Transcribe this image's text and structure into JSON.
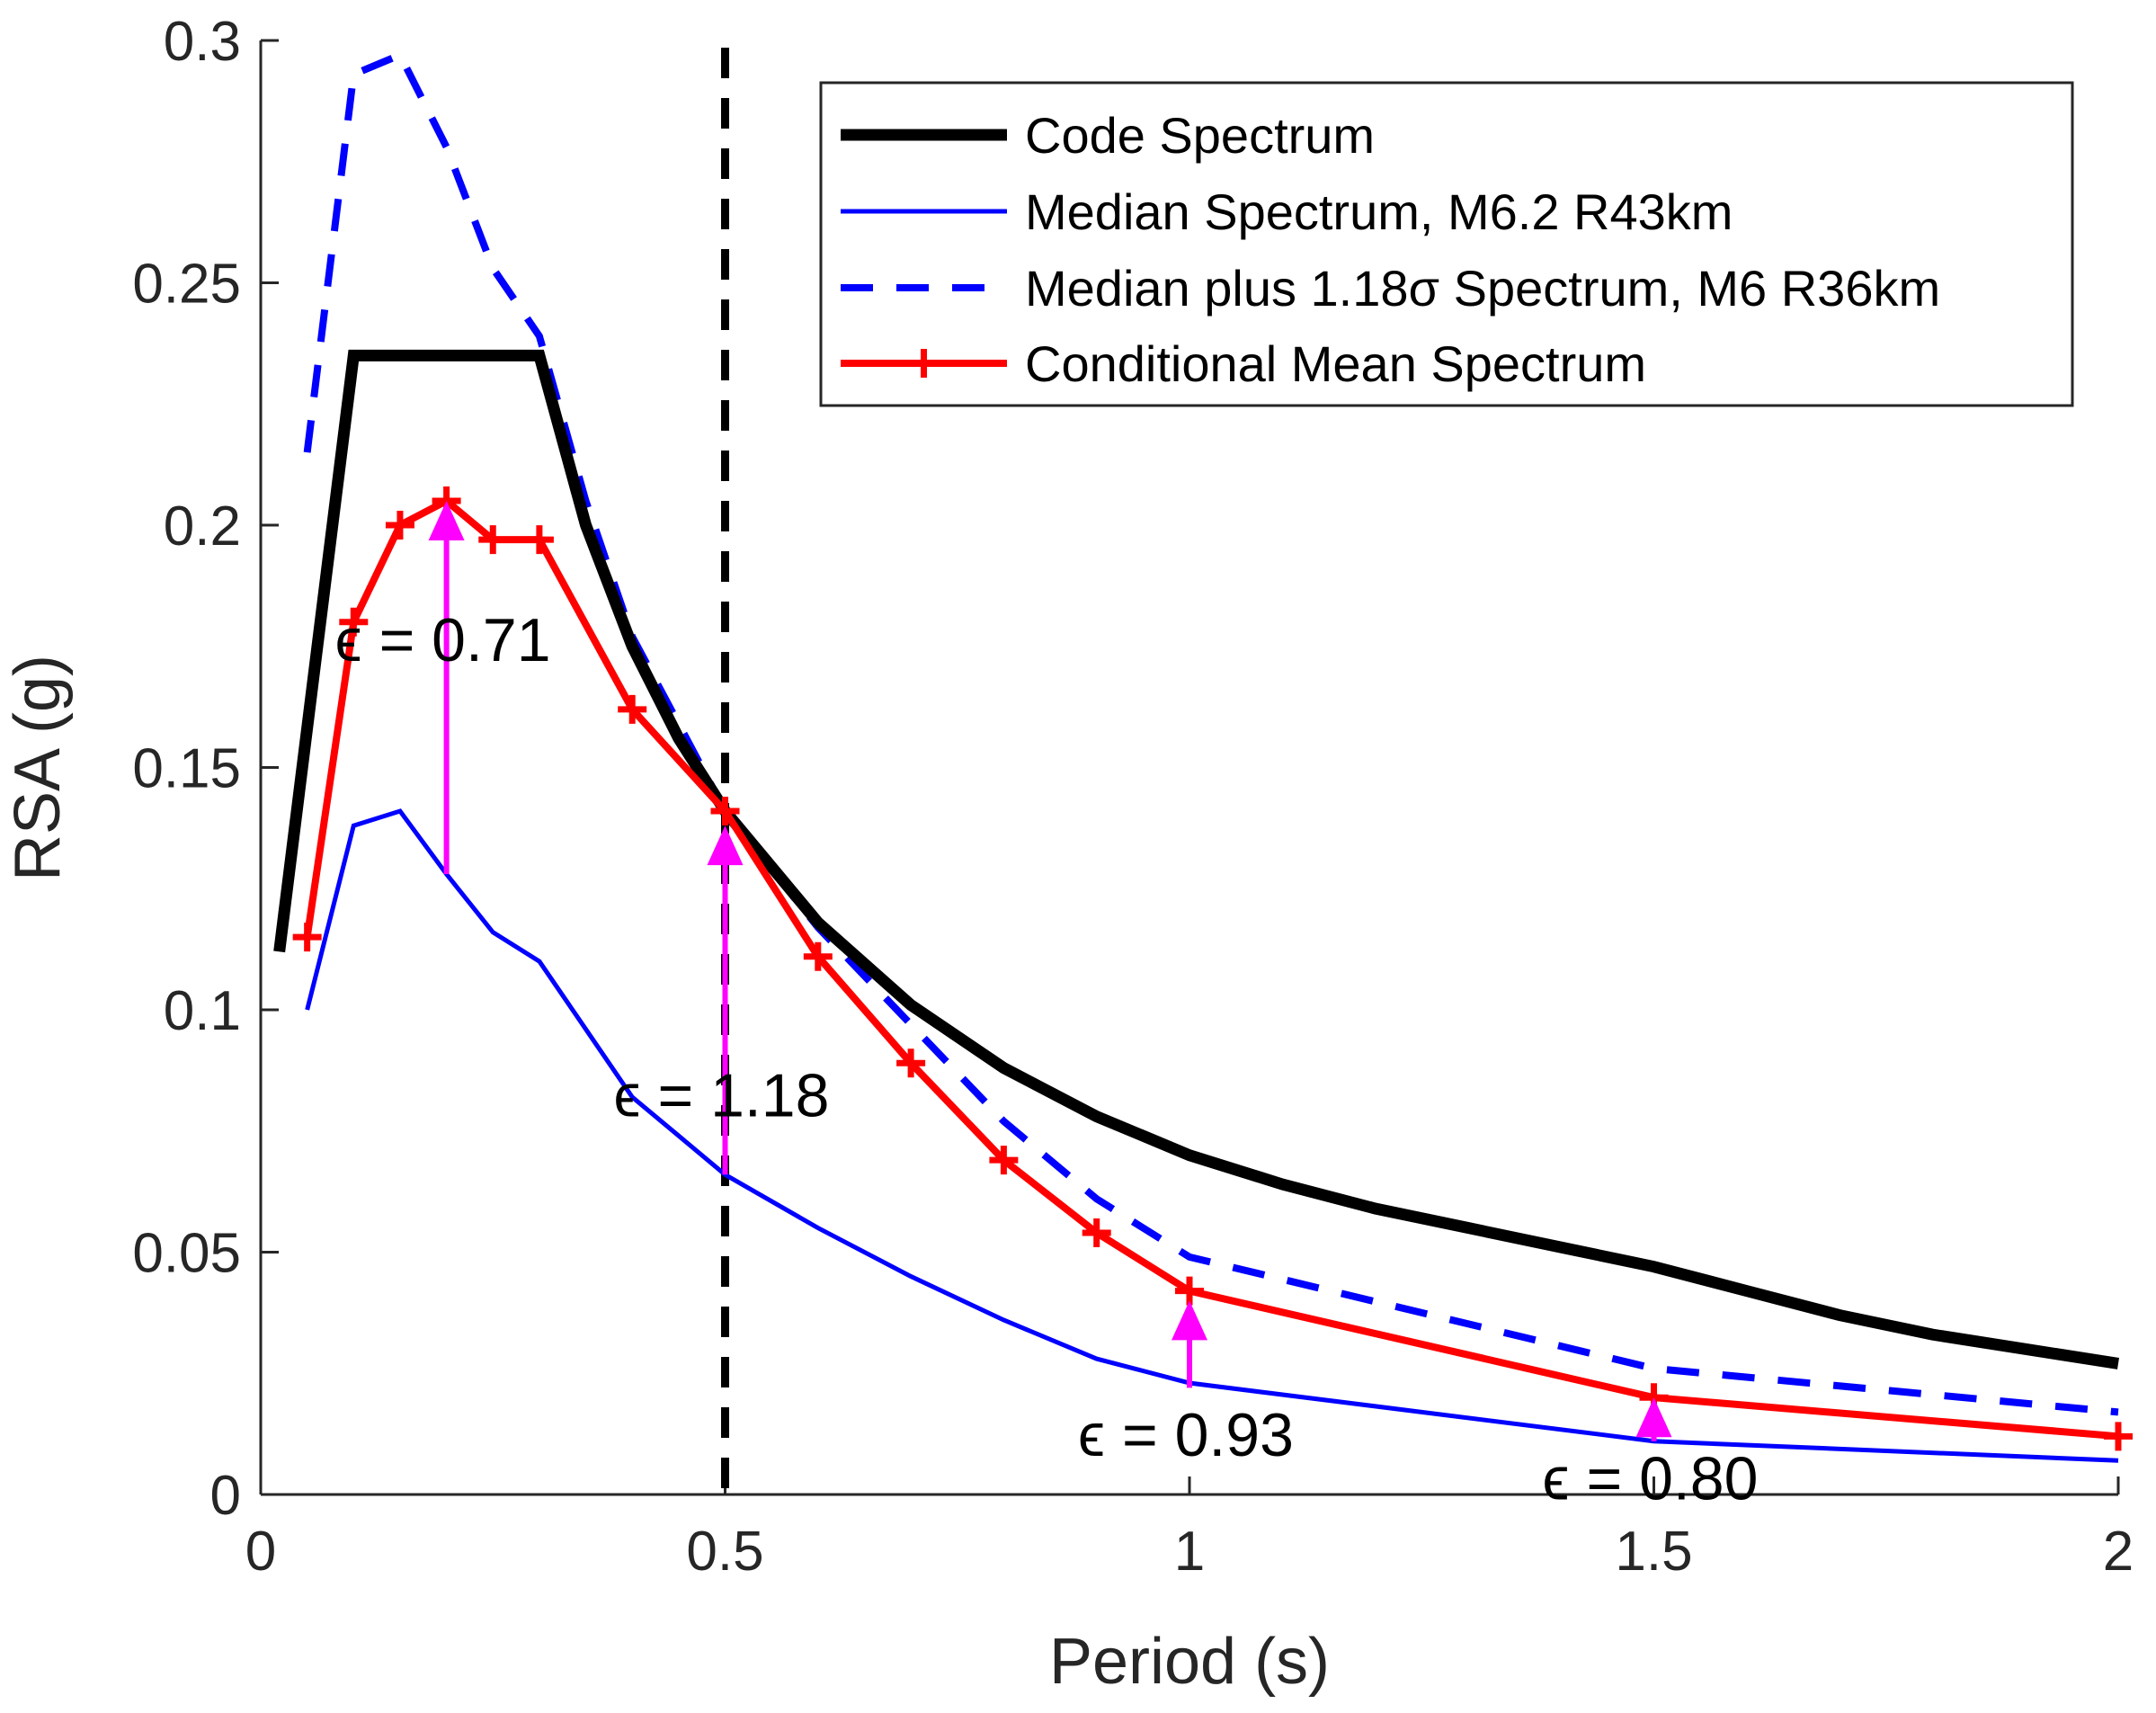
{
  "chart_data": {
    "type": "line",
    "xlabel": "Period (s)",
    "ylabel": "RSA (g)",
    "xlim": [
      0,
      2
    ],
    "ylim": [
      0,
      0.3
    ],
    "xticks": [
      0,
      0.5,
      1,
      1.5,
      2
    ],
    "xtick_labels": [
      "0",
      "0.5",
      "1",
      "1.5",
      "2"
    ],
    "yticks": [
      0,
      0.05,
      0.1,
      0.15,
      0.2,
      0.25,
      0.3
    ],
    "ytick_labels": [
      "0",
      "0.05",
      "0.1",
      "0.15",
      "0.2",
      "0.25",
      "0.3"
    ],
    "grid": false,
    "legend_position": "top-right",
    "conditioning_period": 0.5,
    "series": [
      {
        "name": "Code Spectrum",
        "color": "#000000",
        "style": "solid-thick",
        "x": [
          0.02,
          0.1,
          0.3,
          0.35,
          0.4,
          0.45,
          0.5,
          0.6,
          0.7,
          0.8,
          0.9,
          1.0,
          1.1,
          1.2,
          1.3,
          1.4,
          1.5,
          1.6,
          1.7,
          1.8,
          1.9,
          2.0
        ],
        "y": [
          0.112,
          0.235,
          0.235,
          0.2,
          0.175,
          0.156,
          0.141,
          0.118,
          0.101,
          0.088,
          0.078,
          0.07,
          0.064,
          0.059,
          0.055,
          0.051,
          0.047,
          0.042,
          0.037,
          0.033,
          0.03,
          0.027
        ]
      },
      {
        "name": "Median Spectrum, M6.2 R43km",
        "color": "#0000ff",
        "style": "solid",
        "x": [
          0.05,
          0.1,
          0.15,
          0.2,
          0.25,
          0.3,
          0.35,
          0.4,
          0.5,
          0.6,
          0.7,
          0.8,
          0.9,
          1.0,
          1.5,
          2.0
        ],
        "y": [
          0.1,
          0.138,
          0.141,
          0.128,
          0.116,
          0.11,
          0.096,
          0.082,
          0.066,
          0.055,
          0.045,
          0.036,
          0.028,
          0.023,
          0.011,
          0.007
        ]
      },
      {
        "name": "Median plus 1.18σ Spectrum, M6 R36km",
        "color": "#0000ff",
        "style": "dashed",
        "x": [
          0.05,
          0.1,
          0.15,
          0.2,
          0.25,
          0.3,
          0.35,
          0.4,
          0.5,
          0.6,
          0.7,
          0.8,
          0.9,
          1.0,
          1.5,
          2.0
        ],
        "y": [
          0.215,
          0.293,
          0.297,
          0.278,
          0.253,
          0.239,
          0.205,
          0.177,
          0.141,
          0.117,
          0.097,
          0.077,
          0.061,
          0.049,
          0.026,
          0.017
        ]
      },
      {
        "name": "Conditional Mean Spectrum",
        "color": "#ff0000",
        "style": "solid-with-plus-markers",
        "x": [
          0.05,
          0.1,
          0.15,
          0.2,
          0.25,
          0.3,
          0.4,
          0.5,
          0.6,
          0.7,
          0.8,
          0.9,
          1.0,
          1.5,
          2.0
        ],
        "y": [
          0.115,
          0.18,
          0.2,
          0.205,
          0.197,
          0.197,
          0.162,
          0.141,
          0.111,
          0.089,
          0.069,
          0.054,
          0.042,
          0.02,
          0.012
        ]
      }
    ],
    "epsilon_arrows": [
      {
        "period": 0.2,
        "from": 0.128,
        "to": 0.205,
        "label": "ϵ = 0.71",
        "label_anchor": [
          0.08,
          0.172
        ]
      },
      {
        "period": 0.5,
        "from": 0.066,
        "to": 0.138,
        "label": "ϵ = 1.18",
        "label_anchor": [
          0.38,
          0.078
        ]
      },
      {
        "period": 1.0,
        "from": 0.022,
        "to": 0.04,
        "label": "ϵ = 0.93",
        "label_anchor": [
          0.88,
          0.008
        ]
      },
      {
        "period": 1.5,
        "from": 0.011,
        "to": 0.02,
        "label": "ϵ = 0.80",
        "label_anchor": [
          1.38,
          -0.001
        ]
      }
    ],
    "arrow_color": "#ff00ff"
  }
}
